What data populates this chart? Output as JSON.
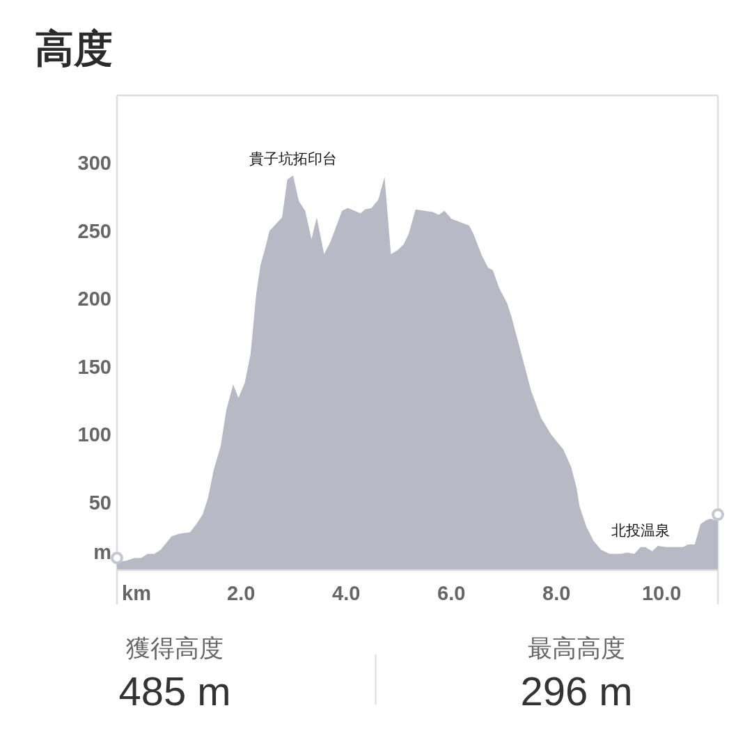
{
  "chart_data": [
    {
      "type": "area",
      "title": "高度",
      "xlabel": "km",
      "ylabel": "m",
      "x": [
        -0.36,
        -0.18,
        -0.03,
        0.1,
        0.22,
        0.35,
        0.47,
        0.68,
        0.83,
        1.03,
        1.15,
        1.27,
        1.37,
        1.48,
        1.61,
        1.72,
        1.85,
        1.95,
        2.07,
        2.18,
        2.29,
        2.37,
        2.45,
        2.54,
        2.78,
        2.88,
        2.99,
        3.1,
        3.22,
        3.34,
        3.44,
        3.58,
        3.7,
        3.92,
        4.03,
        4.16,
        4.27,
        4.36,
        4.48,
        4.61,
        4.73,
        4.85,
        4.98,
        5.09,
        5.19,
        5.32,
        5.49,
        5.65,
        5.76,
        5.87,
        6.0,
        6.14,
        6.34,
        6.42,
        6.58,
        6.7,
        6.79,
        6.91,
        7.06,
        7.15,
        7.28,
        7.52,
        7.71,
        7.9,
        8.13,
        8.28,
        8.38,
        8.44,
        8.57,
        8.7,
        8.85,
        9.01,
        9.22,
        9.35,
        9.48,
        9.6,
        9.69,
        9.82,
        9.93,
        10.09,
        10.41,
        10.5,
        10.63,
        10.74,
        10.85,
        10.93,
        11.01,
        11.07
      ],
      "series": [
        {
          "type": "area",
          "color": "#b9b9c6",
          "values": [
            6,
            7,
            9,
            9,
            12,
            12,
            15,
            25,
            27,
            28,
            34,
            41,
            53,
            74,
            91,
            118,
            137,
            127,
            138,
            159,
            204,
            225,
            236,
            250,
            260,
            288,
            291,
            272,
            265,
            244,
            260,
            233,
            242,
            265,
            267,
            265,
            263,
            266,
            267,
            273,
            290,
            233,
            236,
            240,
            248,
            266,
            265,
            264,
            262,
            265,
            259,
            257,
            254,
            248,
            232,
            223,
            221,
            208,
            197,
            186,
            167,
            132,
            112,
            100,
            89,
            76,
            61,
            47,
            32,
            22,
            15,
            12,
            12,
            13,
            12,
            17,
            17,
            14,
            18,
            17,
            17,
            19,
            19,
            34,
            37,
            38,
            37,
            40
          ]
        },
        {
          "type": "scatter",
          "color": "#c6c6d0",
          "marker": "circle",
          "x": [
            -0.36,
            11.07
          ],
          "values": [
            9,
            41
          ]
        }
      ],
      "xlim": [
        -0.36,
        11.07
      ],
      "ylim": [
        0,
        350
      ],
      "xticks": [
        {
          "value": 2,
          "label": "2.0"
        },
        {
          "value": 4,
          "label": "4.0"
        },
        {
          "value": 6,
          "label": "6.0"
        },
        {
          "value": 8,
          "label": "8.0"
        },
        {
          "value": 10,
          "label": "10.0"
        }
      ],
      "yticks": [
        50,
        100,
        150,
        200,
        250,
        300
      ],
      "annotations": [
        {
          "text": "貴子坑拓印台",
          "x": 2.99,
          "y": 291
        },
        {
          "text": "北投温泉",
          "x": 9.6,
          "y": 17
        }
      ]
    },
    {
      "type": "other",
      "annotations": [
        "獲得高度",
        "485 m",
        "最高高度",
        "296 m"
      ]
    }
  ]
}
